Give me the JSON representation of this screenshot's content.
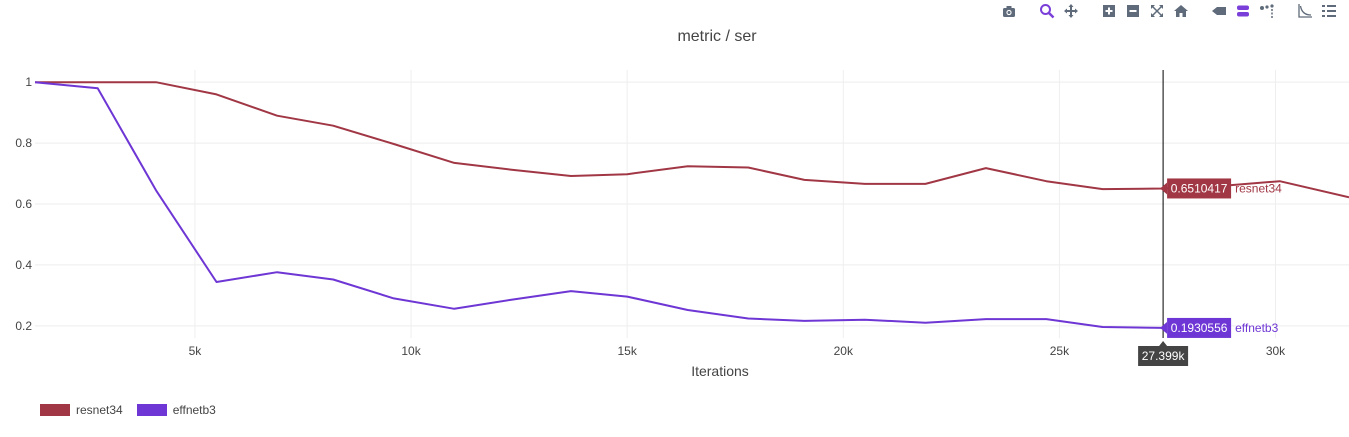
{
  "modebar": {
    "icons": [
      "camera-icon",
      "zoom-icon",
      "pan-icon",
      "zoom-in-icon",
      "zoom-out-icon",
      "autoscale-icon",
      "reset-axes-icon",
      "spike-lines-icon",
      "hover-closest-icon",
      "hover-compare-icon",
      "log-scale-icon",
      "legend-toggle-icon"
    ],
    "accent": "#7a3fd9"
  },
  "chart_data": {
    "type": "line",
    "title": "metric / ser",
    "xlabel": "Iterations",
    "ylabel": "",
    "xlim": [
      1300,
      31700
    ],
    "ylim": [
      0.16,
      1.04
    ],
    "xticks": [
      {
        "v": 5000,
        "label": "5k"
      },
      {
        "v": 10000,
        "label": "10k"
      },
      {
        "v": 15000,
        "label": "15k"
      },
      {
        "v": 20000,
        "label": "20k"
      },
      {
        "v": 25000,
        "label": "25k"
      },
      {
        "v": 30000,
        "label": "30k"
      }
    ],
    "yticks": [
      {
        "v": 1,
        "label": "1"
      },
      {
        "v": 0.8,
        "label": "0.8"
      },
      {
        "v": 0.6,
        "label": "0.6"
      },
      {
        "v": 0.4,
        "label": "0.4"
      },
      {
        "v": 0.2,
        "label": "0.2"
      }
    ],
    "grid": true,
    "legend_position": "bottom-left",
    "series": [
      {
        "name": "resnet34",
        "color": "#a13745",
        "x": [
          1300,
          2750,
          4100,
          5500,
          6900,
          8200,
          9600,
          11000,
          12300,
          13700,
          15000,
          16400,
          17800,
          19100,
          20500,
          21900,
          23300,
          24700,
          26000,
          27399,
          28800,
          30100,
          31700
        ],
        "y": [
          1.0,
          1.0,
          1.0,
          0.96,
          0.89,
          0.857,
          0.797,
          0.735,
          0.713,
          0.692,
          0.698,
          0.724,
          0.72,
          0.679,
          0.666,
          0.666,
          0.718,
          0.675,
          0.649,
          0.6510417,
          0.66,
          0.675,
          0.622
        ]
      },
      {
        "name": "effnetb3",
        "color": "#6e36d4",
        "x": [
          1300,
          2750,
          4100,
          5500,
          6900,
          8200,
          9600,
          11000,
          12300,
          13700,
          15000,
          16400,
          17800,
          19100,
          20500,
          21900,
          23300,
          24700,
          26000,
          27399
        ],
        "y": [
          1.0,
          0.98,
          0.645,
          0.344,
          0.376,
          0.352,
          0.29,
          0.256,
          0.285,
          0.314,
          0.296,
          0.252,
          0.224,
          0.216,
          0.22,
          0.21,
          0.222,
          0.222,
          0.196,
          0.1930556
        ]
      }
    ],
    "hover": {
      "x_label": "27.399k",
      "x_value": 27399,
      "labels": [
        {
          "series": "resnet34",
          "value_text": "0.6510417",
          "y": 0.6510417
        },
        {
          "series": "effnetb3",
          "value_text": "0.1930556",
          "y": 0.1930556
        }
      ]
    }
  }
}
